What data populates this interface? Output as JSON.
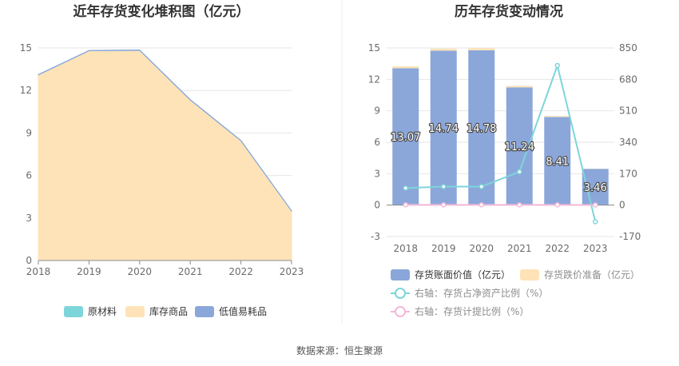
{
  "source": "数据来源：恒生聚源",
  "colors": {
    "raw_material": "#7dd5d9",
    "inventory_goods": "#fde3b7",
    "low_value": "#8ba7da",
    "book_value": "#8ba7da",
    "impairment": "#fde3b7",
    "ratio_line": "#7dd5d9",
    "provision_line": "#f2b8d8",
    "grid": "#e6e6e6",
    "axis": "#8c8c8c"
  },
  "chart_data": [
    {
      "id": "left",
      "type": "area",
      "stacked": true,
      "title": "近年存货变化堆积图（亿元）",
      "categories": [
        "2018",
        "2019",
        "2020",
        "2021",
        "2022",
        "2023"
      ],
      "ylim": [
        0,
        15
      ],
      "yticks": [
        0,
        3,
        6,
        9,
        12,
        15
      ],
      "grid": true,
      "legend_position": "bottom",
      "series": [
        {
          "name": "原材料",
          "values": [
            0.04,
            0.04,
            0.04,
            0.03,
            0.03,
            0.02
          ],
          "color_key": "raw_material",
          "icon": "swatch"
        },
        {
          "name": "库存商品",
          "values": [
            13.06,
            14.76,
            14.79,
            11.3,
            8.42,
            3.48
          ],
          "color_key": "inventory_goods",
          "icon": "swatch"
        },
        {
          "name": "低值易耗品",
          "values": [
            0.02,
            0.02,
            0.02,
            0.02,
            0.02,
            0.01
          ],
          "color_key": "low_value",
          "icon": "swatch"
        }
      ]
    },
    {
      "id": "right",
      "type": "bar",
      "stacked": true,
      "title": "历年存货变动情况",
      "categories": [
        "2018",
        "2019",
        "2020",
        "2021",
        "2022",
        "2023"
      ],
      "ylim": [
        -3,
        15
      ],
      "yticks": [
        -3,
        0,
        3,
        6,
        9,
        12,
        15
      ],
      "y2lim": [
        -170,
        850
      ],
      "y2ticks": [
        -170,
        0,
        170,
        340,
        510,
        680,
        850
      ],
      "grid": true,
      "legend_position": "bottom",
      "series": [
        {
          "name": "存货账面价值（亿元）",
          "type": "bar",
          "axis": "left",
          "values": [
            13.07,
            14.74,
            14.78,
            11.24,
            8.41,
            3.46
          ],
          "labels": [
            "13.07",
            "14.74",
            "14.78",
            "11.24",
            "8.41",
            "3.46"
          ],
          "color_key": "book_value",
          "icon": "swatch"
        },
        {
          "name": "存货跌价准备（亿元）",
          "type": "bar",
          "axis": "left",
          "values": [
            0.18,
            0.2,
            0.2,
            0.15,
            0.1,
            0.02
          ],
          "color_key": "impairment",
          "icon": "swatch"
        },
        {
          "name": "右轴：存货占净资产比例（%）",
          "type": "line",
          "axis": "right",
          "values": [
            92,
            100,
            100,
            180,
            755,
            -90
          ],
          "color_key": "ratio_line",
          "icon": "circle"
        },
        {
          "name": "右轴：存货计提比例（%）",
          "type": "line",
          "axis": "right",
          "values": [
            1.4,
            1.4,
            1.4,
            1.3,
            1.2,
            0.6
          ],
          "color_key": "provision_line",
          "icon": "circle"
        }
      ]
    }
  ]
}
